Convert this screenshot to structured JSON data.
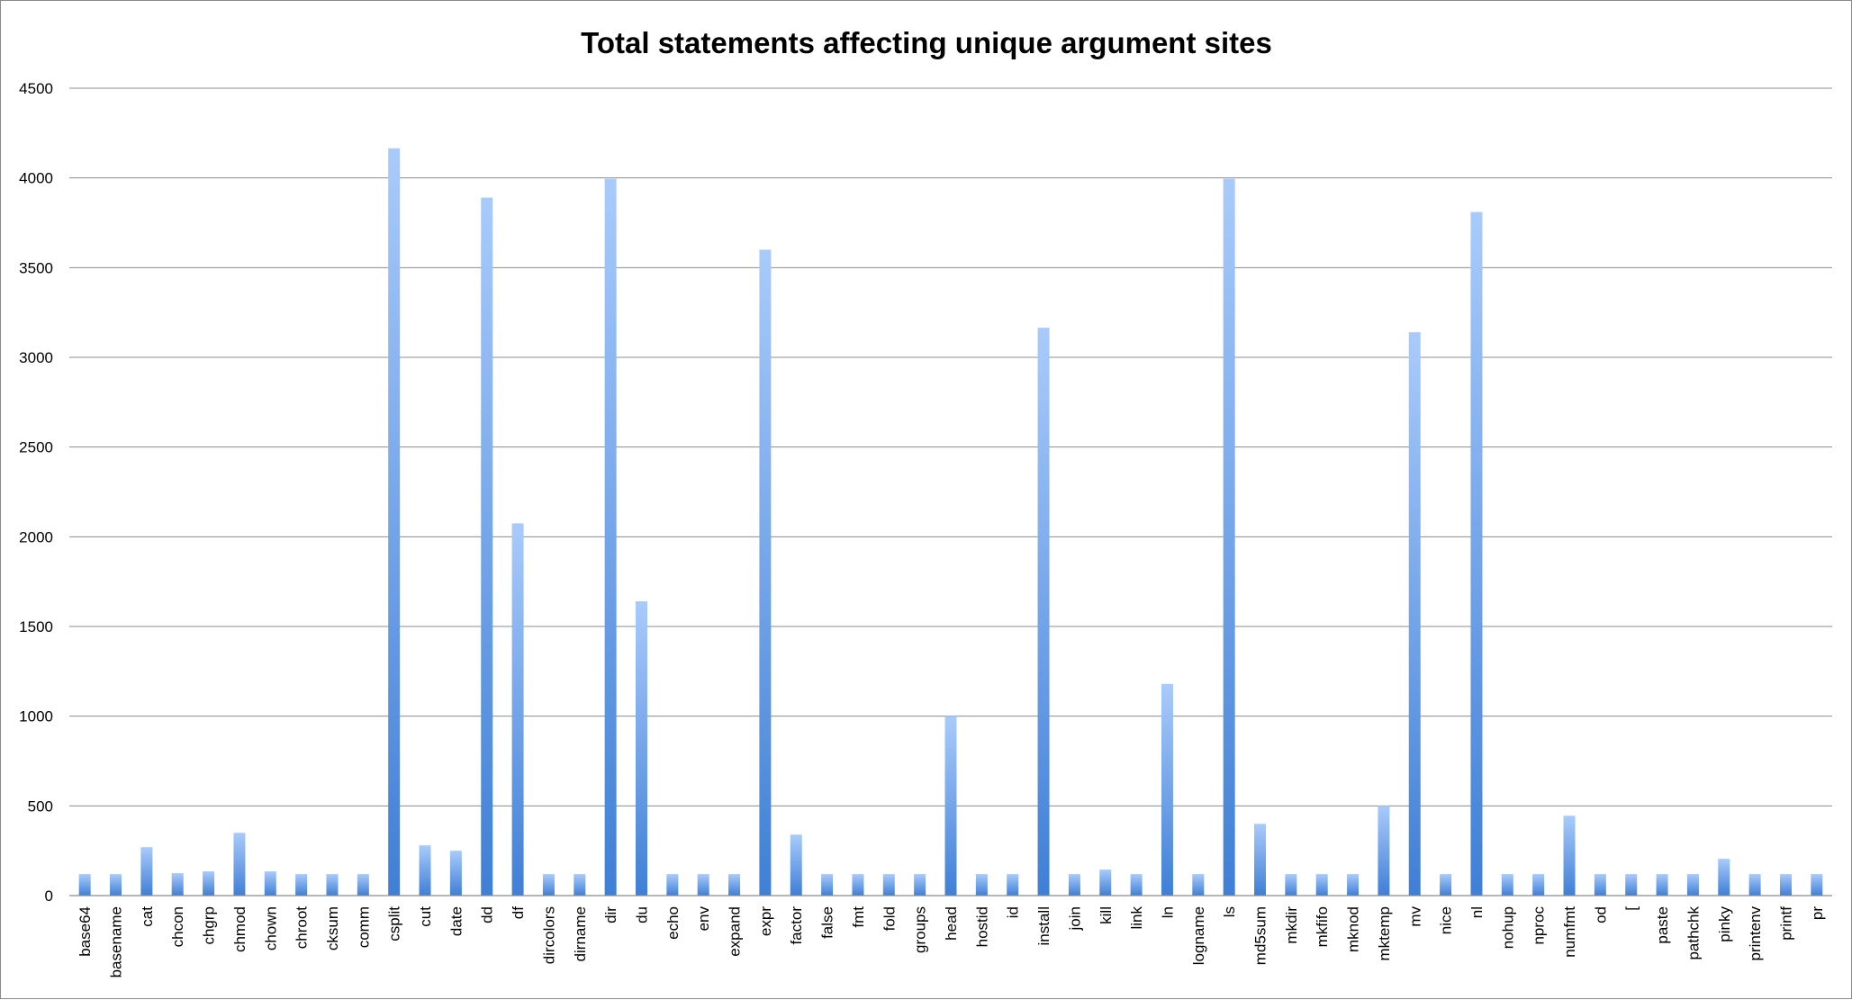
{
  "chart_data": {
    "type": "bar",
    "title": "Total statements affecting unique argument sites",
    "xlabel": "",
    "ylabel": "",
    "ylim": [
      0,
      4500
    ],
    "yticks": [
      0,
      500,
      1000,
      1500,
      2000,
      2500,
      3000,
      3500,
      4000,
      4500
    ],
    "grid": true,
    "legend": "none",
    "bar_color_top": "#a9cbfb",
    "bar_color_bottom": "#3f7fd6",
    "categories": [
      "base64",
      "basename",
      "cat",
      "chcon",
      "chgrp",
      "chmod",
      "chown",
      "chroot",
      "cksum",
      "comm",
      "csplit",
      "cut",
      "date",
      "dd",
      "df",
      "dircolors",
      "dirname",
      "dir",
      "du",
      "echo",
      "env",
      "expand",
      "expr",
      "factor",
      "false",
      "fmt",
      "fold",
      "groups",
      "head",
      "hostid",
      "id",
      "install",
      "join",
      "kill",
      "link",
      "ln",
      "logname",
      "ls",
      "md5sum",
      "mkdir",
      "mkfifo",
      "mknod",
      "mktemp",
      "mv",
      "nice",
      "nl",
      "nohup",
      "nproc",
      "numfmt",
      "od",
      "[",
      "paste",
      "pathchk",
      "pinky",
      "printenv",
      "printf",
      "pr"
    ],
    "values": [
      120,
      120,
      270,
      125,
      135,
      350,
      135,
      120,
      120,
      120,
      4165,
      280,
      250,
      3890,
      2075,
      120,
      120,
      3995,
      1640,
      120,
      120,
      120,
      3600,
      340,
      120,
      120,
      120,
      120,
      1000,
      120,
      120,
      3165,
      120,
      145,
      120,
      1180,
      120,
      3995,
      400,
      120,
      120,
      120,
      500,
      3140,
      120,
      3810,
      120,
      120,
      445,
      120,
      120,
      120,
      120,
      205,
      120,
      120,
      120
    ]
  }
}
